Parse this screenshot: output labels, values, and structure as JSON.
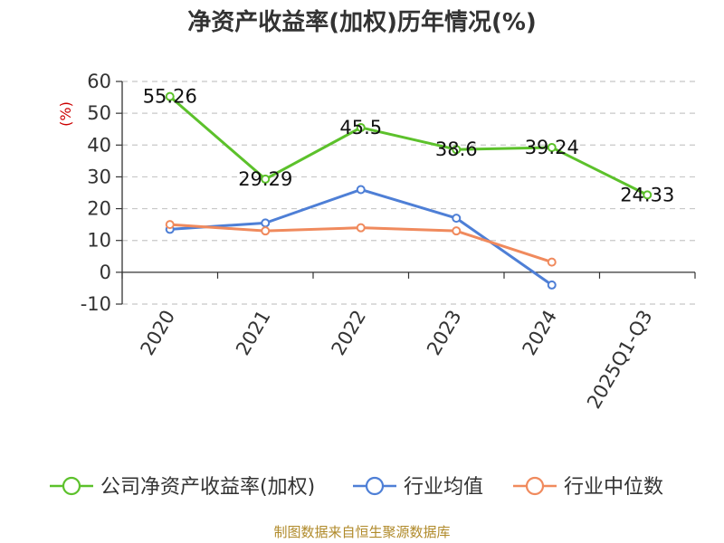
{
  "chart_data": {
    "type": "line",
    "title": "净资产收益率(加权)历年情况(%)",
    "ylabel": "(%)",
    "categories": [
      "2020",
      "2021",
      "2022",
      "2023",
      "2024",
      "2025Q1-Q3"
    ],
    "ylim": [
      -10,
      60
    ],
    "yticks": [
      60,
      50,
      40,
      30,
      20,
      10,
      0,
      -10
    ],
    "grid": true,
    "legend_position": "bottom",
    "series": [
      {
        "name": "公司净资产收益率(加权)",
        "color": "#5cc12b",
        "values": [
          55.26,
          29.29,
          45.5,
          38.6,
          39.24,
          24.33
        ],
        "labels": [
          "55.26",
          "29.29",
          "45.5",
          "38.6",
          "39.24",
          "24.33"
        ]
      },
      {
        "name": "行业均值",
        "color": "#4e7fd6",
        "values": [
          13.5,
          15.5,
          26,
          17,
          -4,
          null
        ]
      },
      {
        "name": "行业中位数",
        "color": "#f08a5d",
        "values": [
          15,
          13,
          14,
          13,
          3.2,
          null
        ]
      }
    ]
  },
  "source": "制图数据来自恒生聚源数据库"
}
